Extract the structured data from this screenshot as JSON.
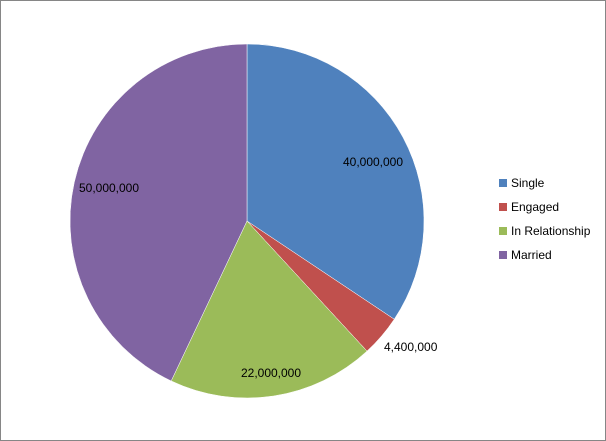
{
  "chart_data": {
    "type": "pie",
    "categories": [
      "Single",
      "Engaged",
      "In Relationship",
      "Married"
    ],
    "values": [
      40000000,
      4400000,
      22000000,
      50000000
    ],
    "value_labels": [
      "40,000,000",
      "4,400,000",
      "22,000,000",
      "50,000,000"
    ],
    "colors": [
      "#4F81BD",
      "#C0504D",
      "#9BBB59",
      "#8064A2"
    ],
    "legend": {
      "position": "right",
      "entries": [
        "Single",
        "Engaged",
        "In Relationship",
        "Married"
      ]
    }
  }
}
